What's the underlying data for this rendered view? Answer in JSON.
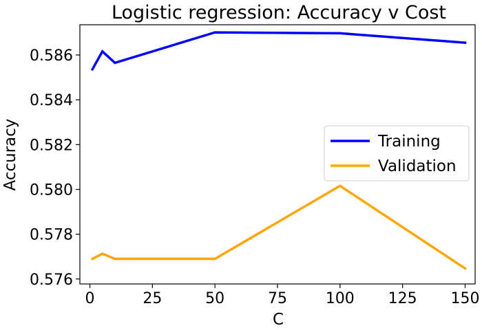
{
  "chart_data": {
    "type": "line",
    "title": "Logistic regression: Accuracy v Cost",
    "xlabel": "C",
    "ylabel": "Accuracy",
    "xlim": [
      -4,
      154
    ],
    "ylim": [
      0.57578,
      0.58735
    ],
    "x_ticks": [
      0,
      25,
      50,
      75,
      100,
      125,
      150
    ],
    "y_ticks": [
      0.576,
      0.578,
      0.58,
      0.582,
      0.584,
      0.586
    ],
    "y_tick_labels": [
      "0.576",
      "0.578",
      "0.580",
      "0.582",
      "0.584",
      "0.586"
    ],
    "x": [
      1,
      5,
      10,
      50,
      100,
      150
    ],
    "series": [
      {
        "name": "Training",
        "color": "#0000ff",
        "values": [
          0.58536,
          0.58616,
          0.58565,
          0.58701,
          0.58697,
          0.58655
        ]
      },
      {
        "name": "Validation",
        "color": "#ffa500",
        "values": [
          0.5769,
          0.57713,
          0.5769,
          0.5769,
          0.58016,
          0.57647
        ]
      }
    ],
    "grid": false,
    "legend_position": "center-right"
  }
}
